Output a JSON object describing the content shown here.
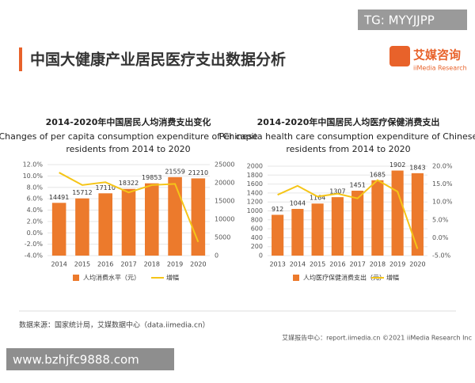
{
  "header": {
    "title": "中国大健康产业居民医疗支出数据分析",
    "logo": "艾媒咨询",
    "logo_sub": "iiMedia Research",
    "badge": "TG: MYYJJPP"
  },
  "chart_data": [
    {
      "type": "bar",
      "title": "2014-2020年中国居民人均消费支出变化",
      "subtitle": "Changes of per capita consumption expenditure of Chinese residents from 2014 to 2020",
      "categories": [
        "2014",
        "2015",
        "2016",
        "2017",
        "2018",
        "2019",
        "2020"
      ],
      "series": [
        {
          "name": "人均消费水平（元）",
          "type": "bar",
          "axis": "y2",
          "color": "#ec7a2c",
          "values": [
            14491,
            15712,
            17110,
            18322,
            19853,
            21559,
            21210
          ]
        },
        {
          "name": "增幅",
          "type": "line",
          "axis": "y",
          "color": "#f5c518",
          "values": [
            10.6,
            8.4,
            8.9,
            7.1,
            8.4,
            8.6,
            -1.6
          ]
        }
      ],
      "ylim": [
        -4,
        12
      ],
      "yticks": [
        {
          "value": -4,
          "label": "-4.0%"
        },
        {
          "value": -2,
          "label": "-2.0%"
        },
        {
          "value": 0,
          "label": "0.0%"
        },
        {
          "value": 2,
          "label": "2.0%"
        },
        {
          "value": 4,
          "label": "4.0%"
        },
        {
          "value": 6,
          "label": "6.0%"
        },
        {
          "value": 8,
          "label": "8.0%"
        },
        {
          "value": 10,
          "label": "10.0%"
        },
        {
          "value": 12,
          "label": "12.0%"
        }
      ],
      "y2lim": [
        0,
        25000
      ],
      "y2ticks": [
        0,
        5000,
        10000,
        15000,
        20000,
        25000
      ],
      "grid": true
    },
    {
      "type": "bar",
      "title": "2014-2020年中国居民人均医疗保健消费支出",
      "subtitle": "Per capita health care consumption expenditure of Chinese residents from 2014 to 2020",
      "categories": [
        "2013",
        "2014",
        "2015",
        "2016",
        "2017",
        "2018",
        "2019",
        "2020"
      ],
      "series": [
        {
          "name": "人均医疗保健消费支出（元）",
          "type": "bar",
          "axis": "y",
          "color": "#ec7a2c",
          "values": [
            912,
            1044,
            1164,
            1307,
            1451,
            1685,
            1902,
            1843
          ]
        },
        {
          "name": "增幅",
          "type": "line",
          "axis": "y2",
          "color": "#f5c518",
          "values": [
            12.0,
            14.5,
            11.5,
            12.3,
            11.0,
            16.1,
            12.9,
            -3.1
          ]
        }
      ],
      "ylim": [
        0,
        2000
      ],
      "yticks": [
        0,
        200,
        400,
        600,
        800,
        1000,
        1200,
        1400,
        1600,
        1800,
        2000
      ],
      "y2lim": [
        -5,
        20
      ],
      "y2ticks": [
        {
          "value": -5,
          "label": "-5.0%"
        },
        {
          "value": 0,
          "label": "0.0%"
        },
        {
          "value": 5,
          "label": "5.0%"
        },
        {
          "value": 10,
          "label": "10.0%"
        },
        {
          "value": 15,
          "label": "15.0%"
        },
        {
          "value": 20,
          "label": "20.0%"
        }
      ],
      "grid": true
    }
  ],
  "footer": {
    "source": "数据来源：国家统计局，艾媒数据中心（data.iimedia.cn）",
    "report": "艾媒报告中心：report.iimedia.cn   ©2021  iiMedia Research  Inc",
    "watermark": "www.bzhjfc9888.com"
  }
}
